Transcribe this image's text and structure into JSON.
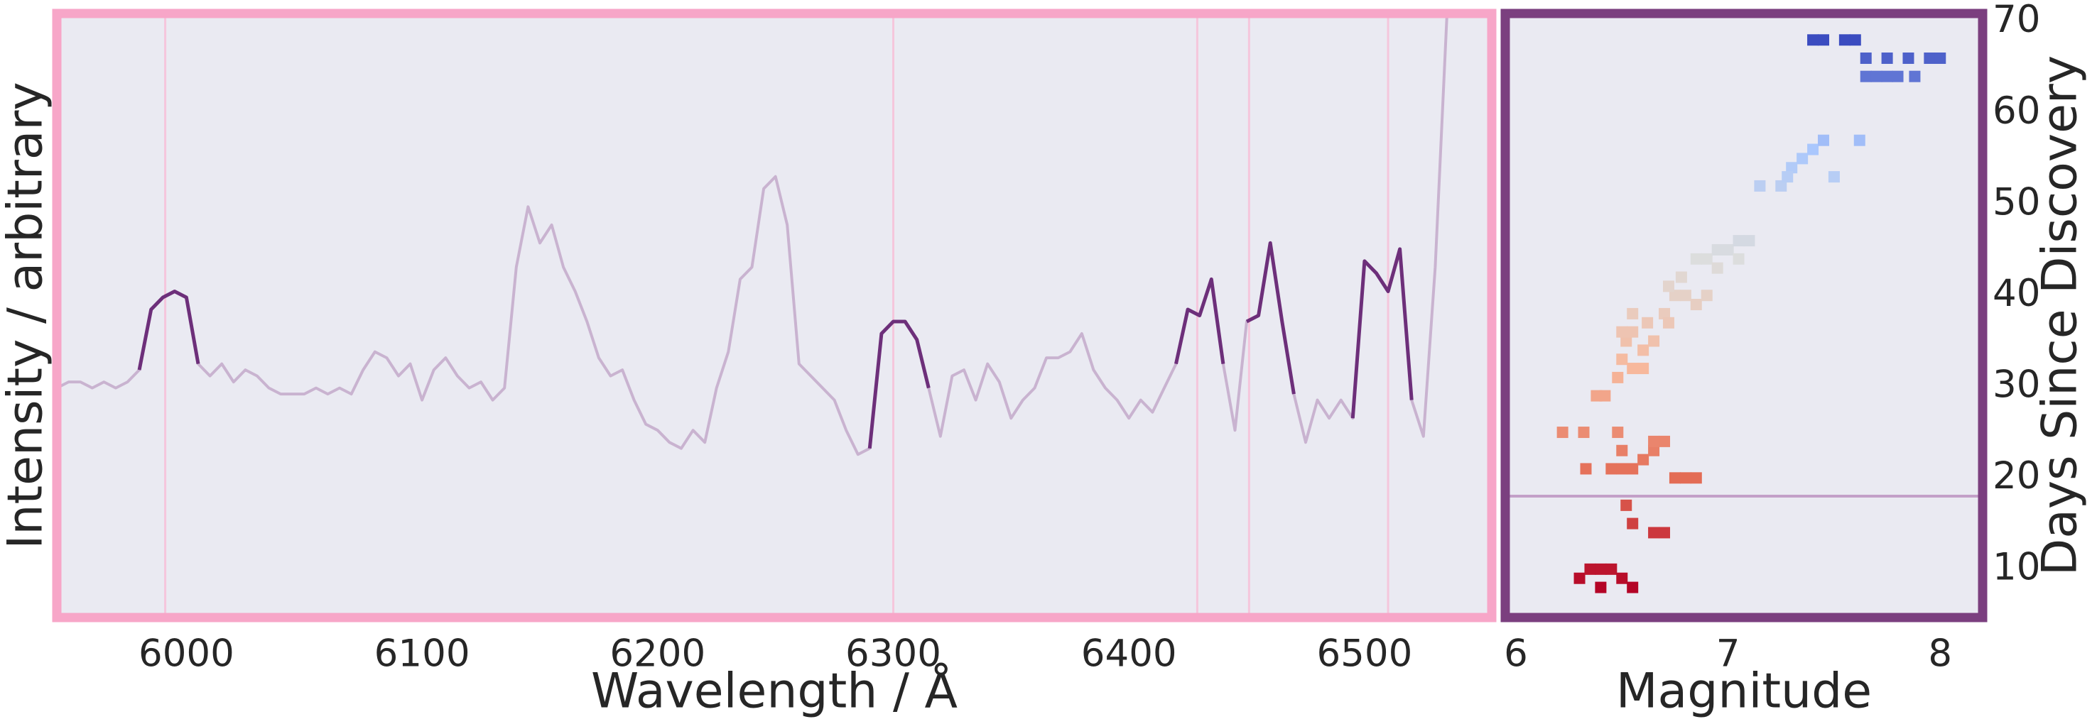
{
  "chart_data": [
    {
      "type": "line",
      "xlabel": "Wavelength / Å",
      "ylabel": "Intensity / arbitrary",
      "x": [
        5945,
        5950,
        5955,
        5960,
        5965,
        5970,
        5975,
        5980,
        5985,
        5990,
        5995,
        6000,
        6005,
        6010,
        6015,
        6020,
        6025,
        6030,
        6035,
        6040,
        6045,
        6050,
        6055,
        6060,
        6065,
        6070,
        6075,
        6080,
        6085,
        6090,
        6095,
        6100,
        6105,
        6110,
        6115,
        6120,
        6125,
        6130,
        6135,
        6140,
        6145,
        6150,
        6155,
        6160,
        6165,
        6170,
        6175,
        6180,
        6185,
        6190,
        6195,
        6200,
        6205,
        6210,
        6215,
        6220,
        6225,
        6230,
        6235,
        6240,
        6245,
        6250,
        6255,
        6260,
        6265,
        6270,
        6275,
        6280,
        6285,
        6290,
        6295,
        6300,
        6305,
        6310,
        6315,
        6320,
        6325,
        6330,
        6335,
        6340,
        6345,
        6350,
        6355,
        6360,
        6365,
        6370,
        6375,
        6380,
        6385,
        6390,
        6395,
        6400,
        6405,
        6410,
        6415,
        6420,
        6425,
        6430,
        6435,
        6440,
        6445,
        6450,
        6455,
        6460,
        6465,
        6470,
        6475,
        6480,
        6485,
        6490,
        6495,
        6500,
        6505,
        6510,
        6515,
        6520,
        6525,
        6530,
        6535
      ],
      "series": [
        {
          "color": "#c9b3d0",
          "values": [
            38,
            39,
            39,
            38,
            39,
            38,
            39,
            41,
            51,
            53,
            54,
            53,
            42,
            40,
            42,
            39,
            41,
            40,
            38,
            37,
            37,
            37,
            38,
            37,
            38,
            37,
            41,
            44,
            43,
            40,
            42,
            36,
            41,
            43,
            40,
            38,
            39,
            36,
            38,
            58,
            68,
            62,
            65,
            58,
            54,
            49,
            43,
            40,
            41,
            36,
            32,
            31,
            29,
            28,
            31,
            29,
            38,
            44,
            56,
            58,
            71,
            73,
            65,
            42,
            40,
            38,
            36,
            31,
            27,
            28,
            47,
            49,
            49,
            46,
            38,
            30,
            40,
            41,
            36,
            42,
            39,
            33,
            36,
            38,
            43,
            43,
            44,
            47,
            41,
            38,
            36,
            33,
            36,
            34,
            38,
            42,
            51,
            50,
            56,
            42,
            31,
            49,
            50,
            62,
            49,
            37,
            29,
            36,
            33,
            36,
            33,
            59,
            57,
            54,
            61,
            36,
            30,
            58,
            100
          ]
        },
        {
          "color": "#6d2f7a",
          "values": [
            null,
            null,
            null,
            null,
            null,
            null,
            null,
            41,
            51,
            53,
            54,
            53,
            42,
            null,
            null,
            null,
            null,
            null,
            null,
            null,
            null,
            null,
            null,
            null,
            null,
            null,
            null,
            null,
            null,
            null,
            null,
            null,
            null,
            null,
            null,
            null,
            null,
            null,
            null,
            null,
            null,
            null,
            null,
            null,
            null,
            null,
            null,
            null,
            null,
            null,
            null,
            null,
            null,
            null,
            null,
            null,
            null,
            null,
            null,
            null,
            null,
            null,
            null,
            null,
            null,
            null,
            null,
            null,
            null,
            28,
            47,
            49,
            49,
            46,
            38,
            null,
            null,
            null,
            null,
            null,
            null,
            null,
            null,
            null,
            null,
            null,
            null,
            null,
            null,
            null,
            null,
            null,
            null,
            null,
            null,
            42,
            51,
            50,
            56,
            42,
            null,
            49,
            50,
            62,
            49,
            37,
            null,
            null,
            null,
            null,
            33,
            59,
            57,
            54,
            61,
            36,
            null,
            null,
            null
          ]
        }
      ],
      "xlim": [
        5945,
        6554
      ],
      "ylim": [
        0,
        100
      ],
      "xticks": [
        6000,
        6100,
        6200,
        6300,
        6400,
        6500
      ],
      "vlines": [
        5991,
        6300,
        6429,
        6451,
        6510
      ],
      "vline_color": "#f5c6dc",
      "frame_color": "#f7a6c8",
      "background": "#eaeaf2",
      "yaxis_side": "left"
    },
    {
      "type": "scatter",
      "xlabel": "Magnitude",
      "ylabel": "Days Since Discovery",
      "x": [
        6.3,
        6.35,
        6.4,
        6.45,
        6.4,
        6.5,
        6.55,
        6.52,
        6.55,
        6.65,
        6.7,
        6.33,
        6.45,
        6.5,
        6.55,
        6.6,
        6.65,
        6.7,
        6.65,
        6.5,
        6.75,
        6.8,
        6.85,
        6.48,
        6.22,
        6.32,
        6.38,
        6.42,
        6.48,
        6.5,
        6.52,
        6.55,
        6.6,
        6.65,
        6.55,
        6.6,
        6.62,
        6.5,
        6.55,
        6.7,
        6.72,
        6.75,
        6.8,
        6.72,
        6.78,
        6.85,
        6.9,
        6.9,
        6.95,
        7.0,
        7.05,
        7.1,
        6.95,
        7.05,
        6.85,
        7.15,
        7.25,
        7.3,
        7.35,
        7.4,
        7.45,
        7.5,
        7.62,
        7.28,
        7.4,
        7.45,
        7.55,
        7.6,
        7.65,
        7.75,
        7.85,
        7.95,
        8.0,
        7.65,
        7.7,
        7.75,
        7.8,
        7.88
      ],
      "y": [
        9,
        10,
        10,
        10,
        8,
        9,
        8,
        17,
        15,
        14,
        14,
        21,
        21,
        21,
        21,
        22,
        23,
        24,
        24,
        23,
        20,
        20,
        20,
        25,
        25,
        25,
        29,
        29,
        31,
        33,
        35,
        36,
        34,
        35,
        32,
        32,
        37,
        36,
        38,
        38,
        37,
        40,
        40,
        41,
        42,
        39,
        40,
        44,
        45,
        45,
        46,
        46,
        43,
        44,
        44,
        52,
        52,
        54,
        55,
        56,
        57,
        53,
        57,
        53,
        68,
        68,
        68,
        68,
        66,
        66,
        66,
        66,
        66,
        64,
        64,
        64,
        64,
        64
      ],
      "colormap": [
        "#b40426",
        "#e36c55",
        "#f7b89c",
        "#dcdddd",
        "#aac7fd",
        "#3b4cc0"
      ],
      "xlim": [
        5.95,
        8.2
      ],
      "ylim": [
        4.7,
        70.9
      ],
      "xticks": [
        6,
        7,
        8
      ],
      "yticks": [
        10,
        20,
        30,
        40,
        50,
        60,
        70
      ],
      "hlines": [
        18
      ],
      "hline_color": "#c3a0c8",
      "frame_color": "#7b3f7f",
      "background": "#eaeaf2",
      "yaxis_side": "right"
    }
  ]
}
